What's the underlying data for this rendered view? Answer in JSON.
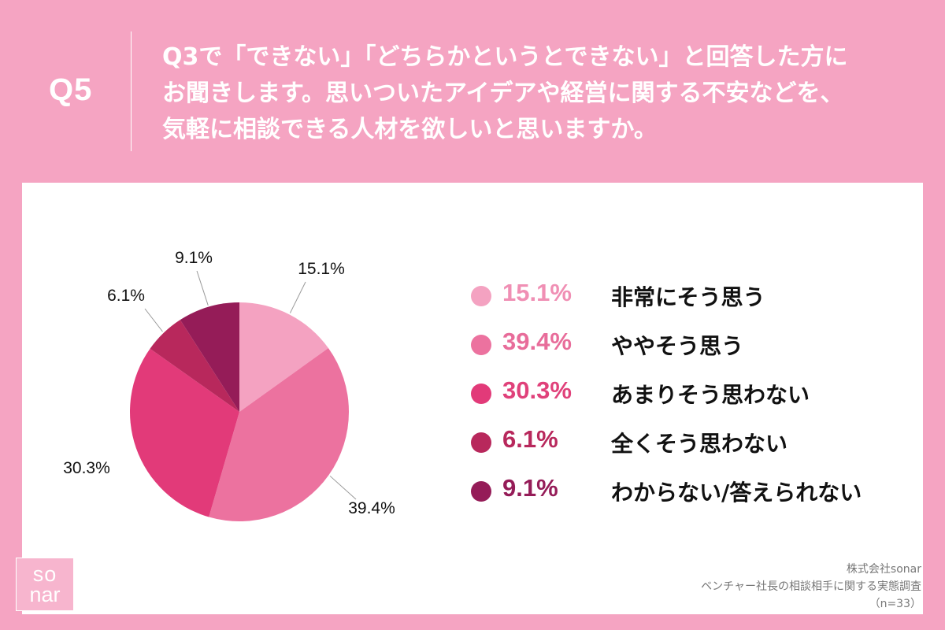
{
  "question": {
    "number": "Q5",
    "lines": [
      "Q3で「できない」「どちらかというとできない」と回答した方に",
      "お聞きします。思いついたアイデアや経営に関する不安などを、",
      "気軽に相談できる人材を欲しいと思いますか。"
    ]
  },
  "logo": {
    "line1": "so",
    "line2": "nar"
  },
  "source": {
    "company": "株式会社sonar",
    "survey": "ベンチャー社長の相談相手に関する実態調査",
    "sample": "（n=33）"
  },
  "colors": {
    "header_bg": "#f5a4c2",
    "panel_bg": "#ffffff",
    "pct_text": [
      "#f08fb4",
      "#e86c9a",
      "#e0417a",
      "#b8285c",
      "#951c58"
    ]
  },
  "chart_data": {
    "type": "pie",
    "title": "",
    "start": "12 o'clock, clockwise",
    "legend_position": "right",
    "slices": [
      {
        "label": "非常にそう思う",
        "value": 15.1,
        "display": "15.1%",
        "color": "#f4a2c1"
      },
      {
        "label": "ややそう思う",
        "value": 39.4,
        "display": "39.4%",
        "color": "#ec729f"
      },
      {
        "label": "あまりそう思わない",
        "value": 30.3,
        "display": "30.3%",
        "color": "#e23a79"
      },
      {
        "label": "全くそう思わない",
        "value": 6.1,
        "display": "6.1%",
        "color": "#b8285c"
      },
      {
        "label": "わからない/答えられない",
        "value": 9.1,
        "display": "9.1%",
        "color": "#951c58"
      }
    ]
  }
}
